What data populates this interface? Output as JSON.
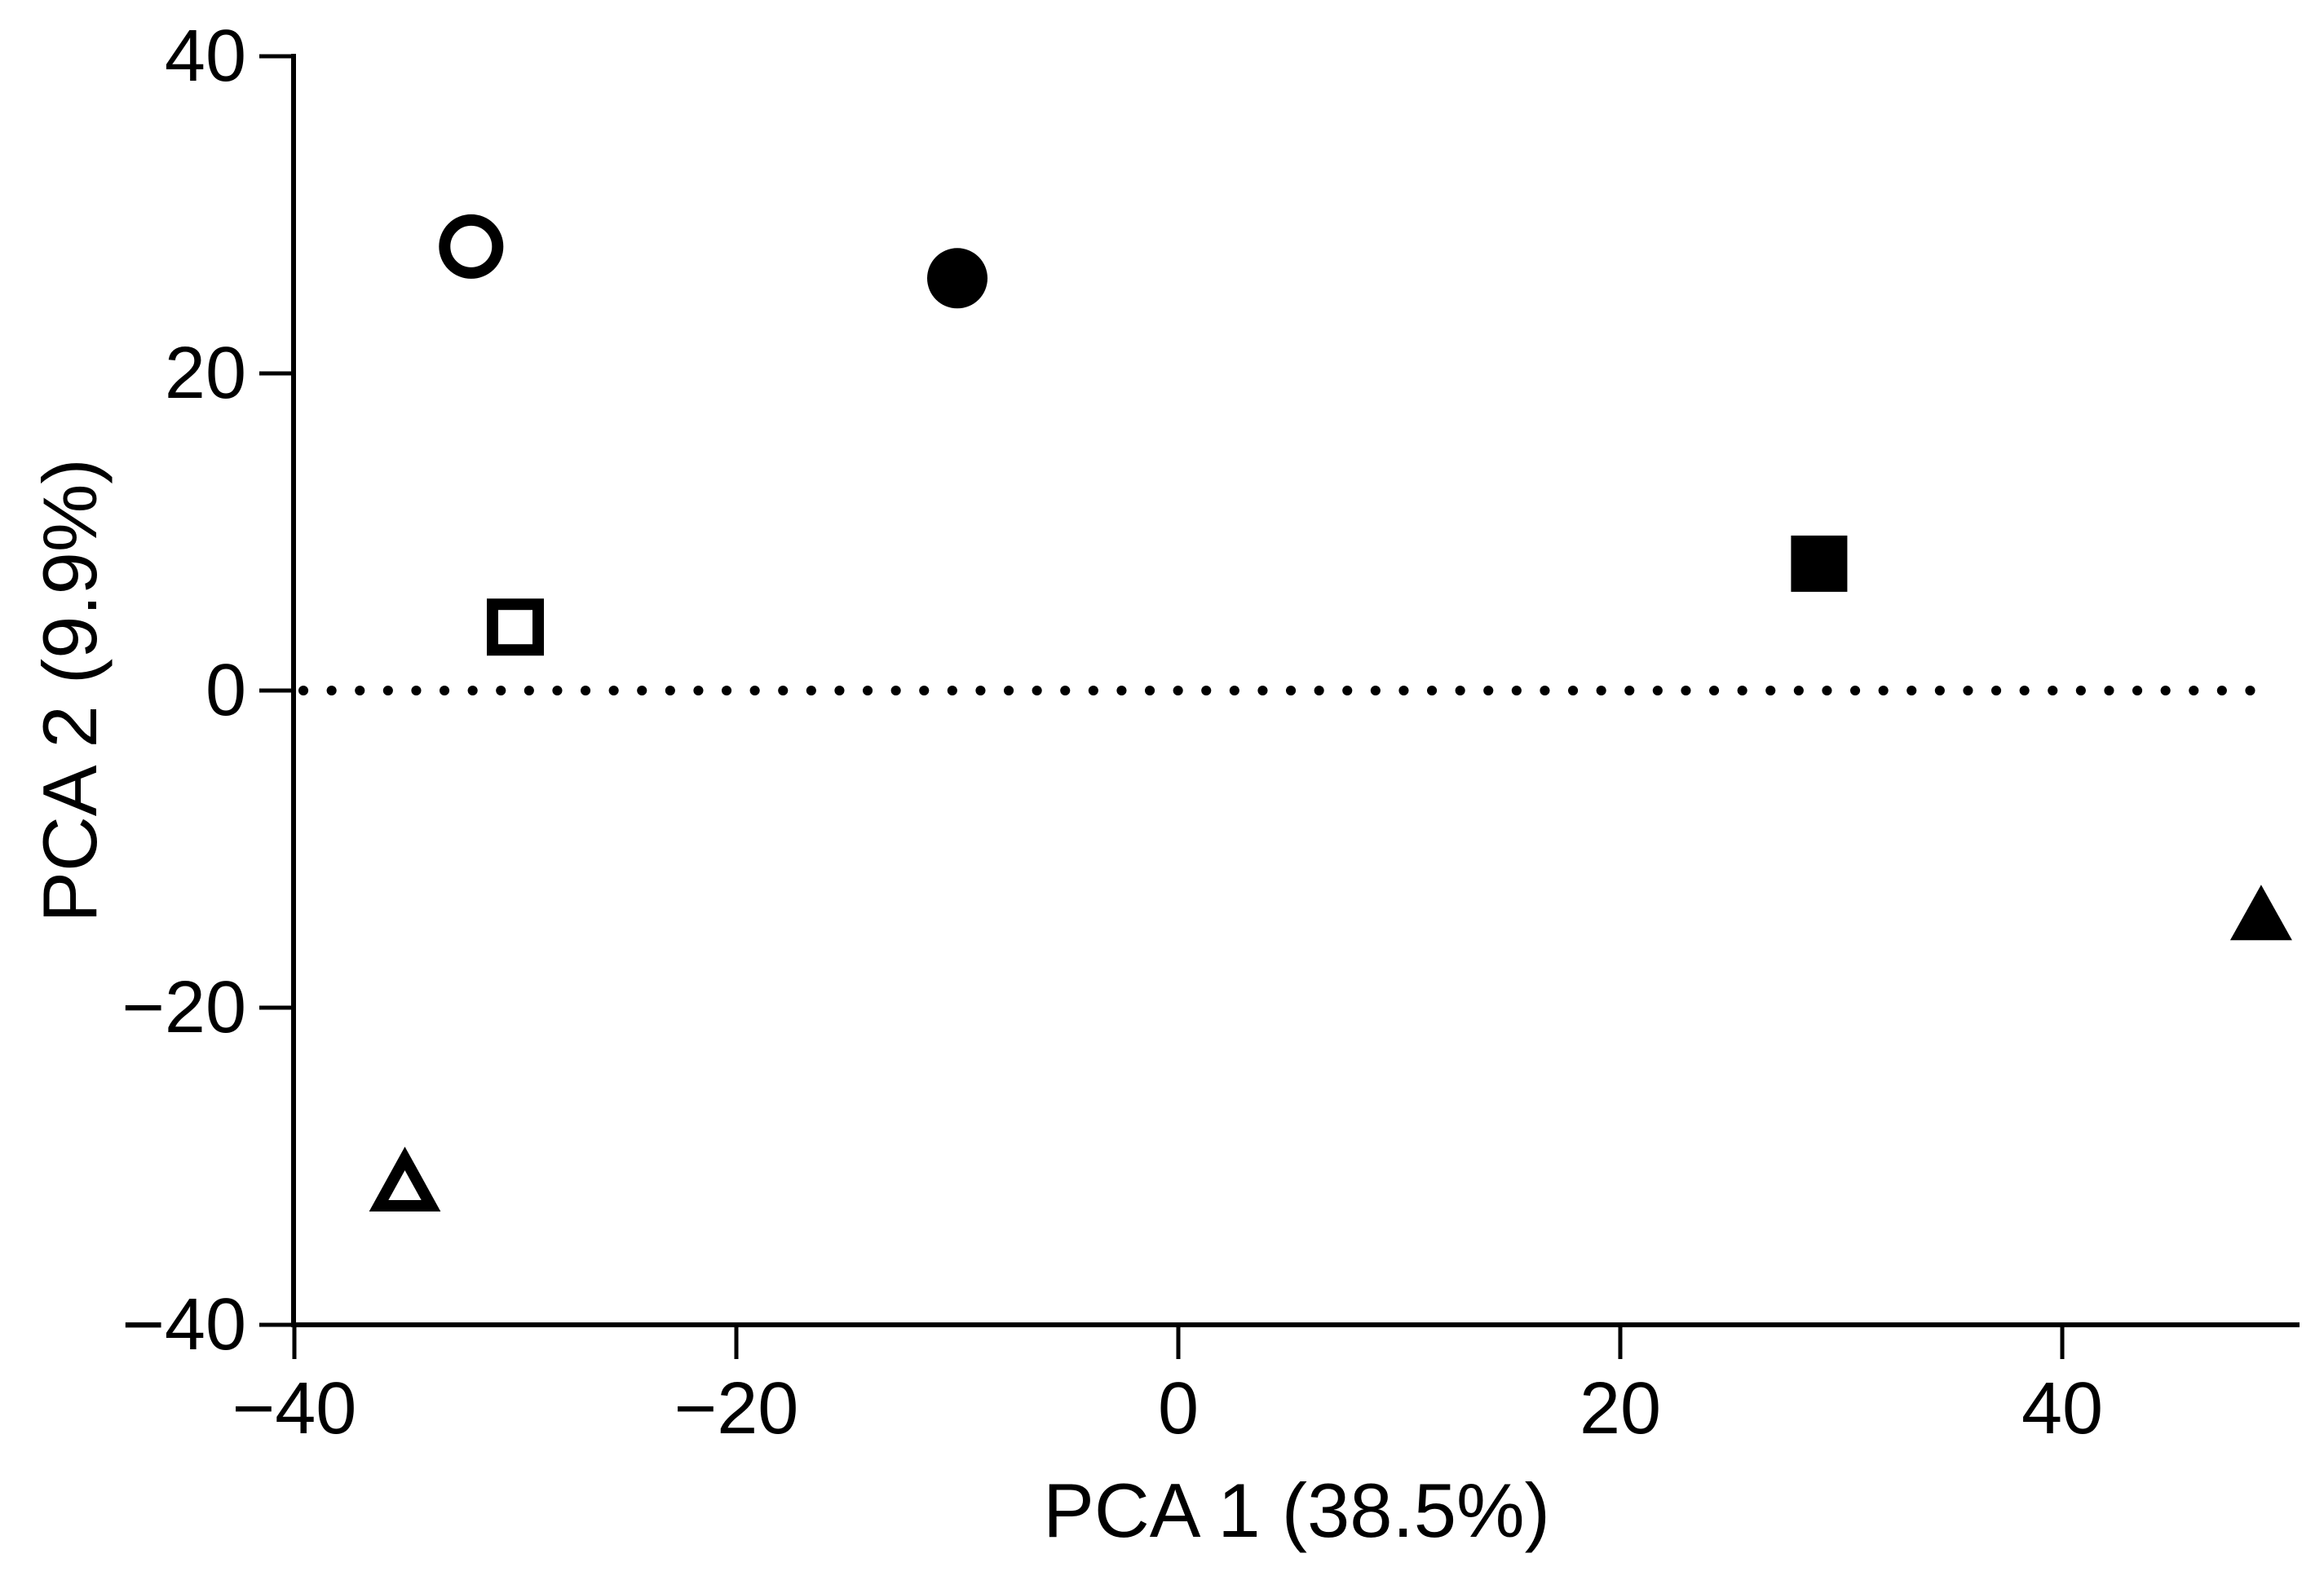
{
  "figure": {
    "background_color": "#ffffff",
    "ink_color": "#000000"
  },
  "chart_data": {
    "type": "scatter",
    "title": "",
    "xlabel": "PCA 1 (38.5%)",
    "ylabel": "PCA 2 (9.9%)",
    "xlim": [
      -40,
      50.7
    ],
    "ylim": [
      -40,
      40.2
    ],
    "grid": false,
    "legend": "none",
    "x_ticks": [
      -40,
      -20,
      0,
      20,
      40
    ],
    "x_tick_labels": [
      "−40",
      "−20",
      "0",
      "20",
      "40"
    ],
    "y_ticks": [
      40,
      20,
      0,
      -20,
      -40
    ],
    "y_tick_labels": [
      "40",
      "20",
      "0",
      "−20",
      "−40"
    ],
    "reference_line": {
      "axis": "y",
      "value": 0,
      "style": "dotted"
    },
    "series": [
      {
        "name": "open-circle",
        "marker": "circle",
        "fill": "open",
        "points": [
          {
            "x": -32,
            "y": 28
          }
        ]
      },
      {
        "name": "filled-circle",
        "marker": "circle",
        "fill": "solid",
        "points": [
          {
            "x": -10,
            "y": 26
          }
        ]
      },
      {
        "name": "open-square",
        "marker": "square",
        "fill": "open",
        "points": [
          {
            "x": -30,
            "y": 4
          }
        ]
      },
      {
        "name": "filled-square",
        "marker": "square",
        "fill": "solid",
        "points": [
          {
            "x": 29,
            "y": 8
          }
        ]
      },
      {
        "name": "open-triangle",
        "marker": "triangle",
        "fill": "open",
        "points": [
          {
            "x": -35,
            "y": -31
          }
        ]
      },
      {
        "name": "filled-triangle",
        "marker": "triangle",
        "fill": "solid",
        "points": [
          {
            "x": 49,
            "y": -14
          }
        ]
      }
    ]
  }
}
